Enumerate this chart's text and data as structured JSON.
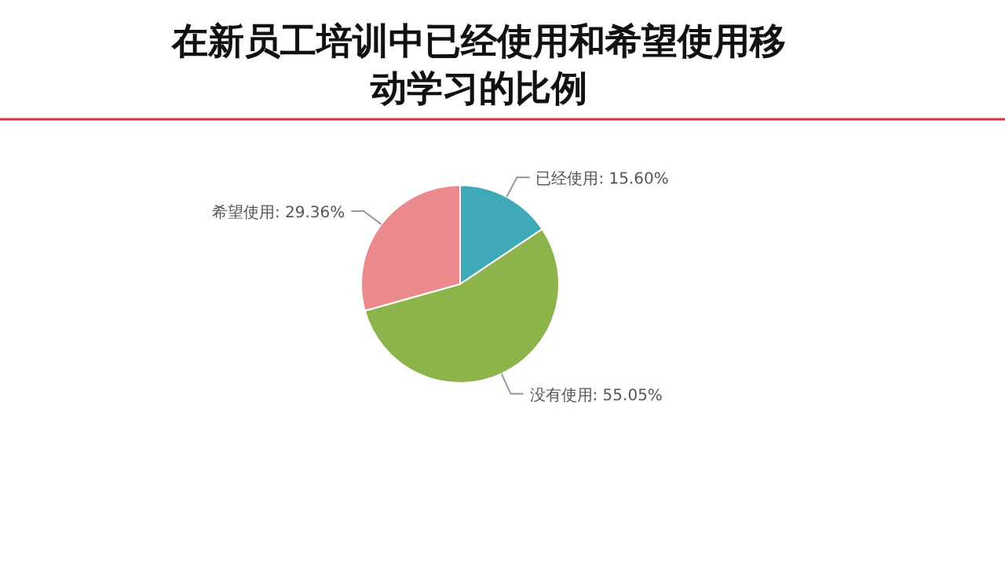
{
  "chart_data": {
    "type": "pie",
    "title": "在新员工培训中已经使用和希望使用移动学习的比例",
    "categories": [
      "已经使用",
      "没有使用",
      "希望使用"
    ],
    "values": [
      15.6,
      55.05,
      29.36
    ],
    "colors": [
      "#3fa9b8",
      "#8db44a",
      "#eb8a8c"
    ],
    "value_labels": [
      ": 15.60%",
      ": 55.05%",
      ": 29.36%"
    ]
  }
}
